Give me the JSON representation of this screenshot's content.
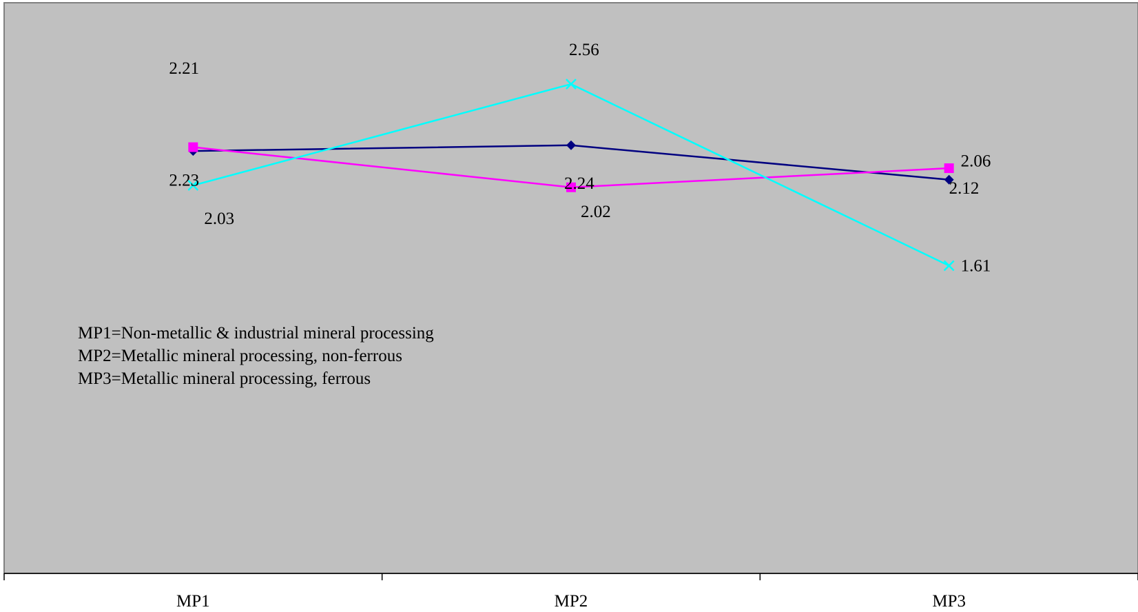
{
  "chart_data": {
    "type": "line",
    "categories": [
      "MP1",
      "MP2",
      "MP3"
    ],
    "ylim": [
      0,
      3
    ],
    "grid": false,
    "legend": "none",
    "series": [
      {
        "color": "#000080",
        "marker": "diamond",
        "values": [
          2.21,
          2.24,
          2.06
        ]
      },
      {
        "color": "#ff00ff",
        "marker": "square",
        "values": [
          2.23,
          2.02,
          2.12
        ]
      },
      {
        "color": "#00ffff",
        "marker": "x",
        "values": [
          2.03,
          2.56,
          1.61
        ]
      }
    ],
    "data_labels": [
      {
        "text": "2.21",
        "category": "MP1",
        "series": 0
      },
      {
        "text": "2.23",
        "category": "MP1",
        "series": 1
      },
      {
        "text": "2.03",
        "category": "MP1",
        "series": 2
      },
      {
        "text": "2.56",
        "category": "MP2",
        "series": 2
      },
      {
        "text": "2.24",
        "category": "MP2",
        "series": 0
      },
      {
        "text": "2.02",
        "category": "MP2",
        "series": 1
      },
      {
        "text": "2.06",
        "category": "MP3",
        "series": 0
      },
      {
        "text": "2.12",
        "category": "MP3",
        "series": 1
      },
      {
        "text": "1.61",
        "category": "MP3",
        "series": 2
      }
    ],
    "annotations": [
      "MP1=Non-metallic & industrial mineral processing",
      "MP2=Metallic mineral processing, non-ferrous",
      "MP3=Metallic mineral processing, ferrous"
    ],
    "plot_background": "#c0c0c0"
  }
}
